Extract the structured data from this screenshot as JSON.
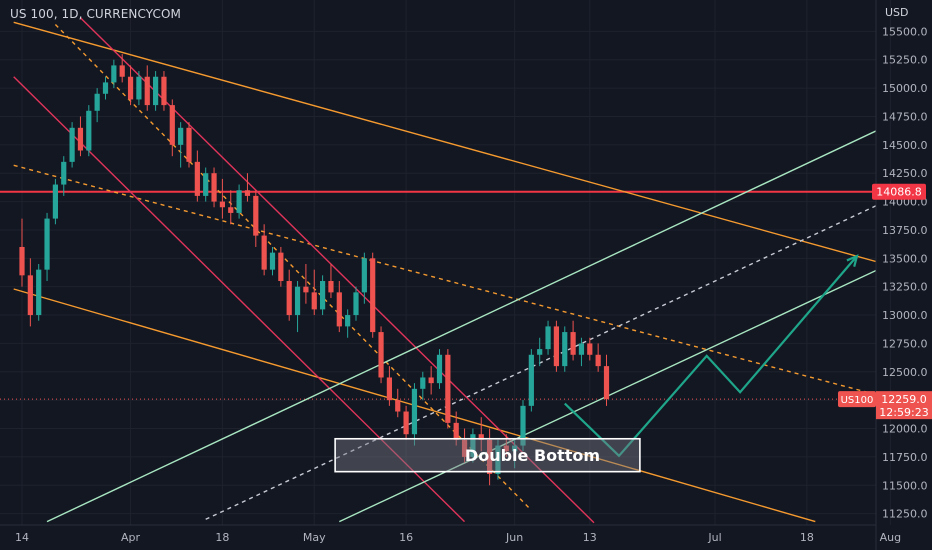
{
  "header": {
    "symbol_title": "US 100, 1D, CURRENCYCOM",
    "currency": "USD"
  },
  "colors": {
    "background": "#131722",
    "up": "#26a69a",
    "down": "#ef5350",
    "orange": "#f59a2f",
    "mint": "#a8e6c1",
    "teal": "#1fa68a",
    "red_level": "#f23645",
    "red_channel": "#e0345a"
  },
  "chart_data": {
    "type": "candlestick",
    "title": "US 100, 1D, CURRENCYCOM",
    "ylabel": "USD",
    "ylim": [
      11150,
      15600
    ],
    "y_ticks": [
      15500,
      15250,
      15000,
      14750,
      14500,
      14250,
      14000,
      13750,
      13500,
      13250,
      13000,
      12750,
      12500,
      12250,
      12000,
      11750,
      11500,
      11250
    ],
    "y_tick_labels": [
      "15500.0",
      "15250.0",
      "15000.0",
      "14750.0",
      "14500.0",
      "14250.0",
      "14000.0",
      "13750.0",
      "13500.0",
      "13250.0",
      "13000.0",
      "12750.0",
      "12500.0",
      "12250.0",
      "12000.0",
      "11750.0",
      "11500.0",
      "11250.0"
    ],
    "x_ticks": [
      {
        "label": "14",
        "bar": 0
      },
      {
        "label": "Apr",
        "bar": 13
      },
      {
        "label": "18",
        "bar": 24
      },
      {
        "label": "May",
        "bar": 35
      },
      {
        "label": "16",
        "bar": 46
      },
      {
        "label": "Jun",
        "bar": 59
      },
      {
        "label": "13",
        "bar": 68
      },
      {
        "label": "Jul",
        "bar": 83
      },
      {
        "label": "18",
        "bar": 94
      },
      {
        "label": "Aug",
        "bar": 104
      }
    ],
    "candles": [
      [
        13600,
        13850,
        13250,
        13350
      ],
      [
        13350,
        13500,
        12900,
        13000
      ],
      [
        13000,
        13450,
        12950,
        13400
      ],
      [
        13400,
        13900,
        13300,
        13850
      ],
      [
        13850,
        14200,
        13800,
        14150
      ],
      [
        14150,
        14400,
        14050,
        14350
      ],
      [
        14350,
        14700,
        14300,
        14650
      ],
      [
        14650,
        14750,
        14400,
        14450
      ],
      [
        14450,
        14850,
        14400,
        14800
      ],
      [
        14800,
        15000,
        14700,
        14950
      ],
      [
        14950,
        15100,
        14900,
        15050
      ],
      [
        15050,
        15250,
        15000,
        15200
      ],
      [
        15200,
        15300,
        15050,
        15100
      ],
      [
        15100,
        15200,
        14850,
        14900
      ],
      [
        14900,
        15150,
        14850,
        15100
      ],
      [
        15100,
        15200,
        14800,
        14850
      ],
      [
        14850,
        15150,
        14800,
        15100
      ],
      [
        15100,
        15150,
        14800,
        14850
      ],
      [
        14850,
        14900,
        14400,
        14500
      ],
      [
        14500,
        14700,
        14300,
        14650
      ],
      [
        14650,
        14700,
        14300,
        14350
      ],
      [
        14350,
        14450,
        14000,
        14050
      ],
      [
        14050,
        14300,
        14000,
        14250
      ],
      [
        14250,
        14300,
        13950,
        14000
      ],
      [
        14000,
        14200,
        13850,
        13950
      ],
      [
        13950,
        14100,
        13800,
        13900
      ],
      [
        13900,
        14150,
        13850,
        14100
      ],
      [
        14100,
        14250,
        14000,
        14050
      ],
      [
        14050,
        14100,
        13600,
        13700
      ],
      [
        13700,
        13800,
        13350,
        13400
      ],
      [
        13400,
        13600,
        13350,
        13550
      ],
      [
        13550,
        13600,
        13250,
        13300
      ],
      [
        13300,
        13400,
        12950,
        13000
      ],
      [
        13000,
        13300,
        12850,
        13250
      ],
      [
        13250,
        13450,
        13100,
        13200
      ],
      [
        13200,
        13400,
        13000,
        13050
      ],
      [
        13050,
        13350,
        13000,
        13300
      ],
      [
        13300,
        13450,
        13150,
        13200
      ],
      [
        13200,
        13300,
        12850,
        12900
      ],
      [
        12900,
        13050,
        12800,
        13000
      ],
      [
        13000,
        13250,
        12950,
        13200
      ],
      [
        13200,
        13550,
        13100,
        13500
      ],
      [
        13500,
        13550,
        12800,
        12850
      ],
      [
        12850,
        12900,
        12400,
        12450
      ],
      [
        12450,
        12550,
        12200,
        12250
      ],
      [
        12250,
        12350,
        12100,
        12150
      ],
      [
        12150,
        12200,
        11900,
        11950
      ],
      [
        11950,
        12400,
        11850,
        12350
      ],
      [
        12350,
        12500,
        12250,
        12450
      ],
      [
        12450,
        12550,
        12300,
        12400
      ],
      [
        12400,
        12700,
        12350,
        12650
      ],
      [
        12650,
        12700,
        12000,
        12050
      ],
      [
        12050,
        12150,
        11850,
        11900
      ],
      [
        11900,
        12000,
        11700,
        11750
      ],
      [
        11750,
        12000,
        11700,
        11950
      ],
      [
        11950,
        12100,
        11800,
        11900
      ],
      [
        11900,
        12000,
        11500,
        11600
      ],
      [
        11600,
        11900,
        11550,
        11850
      ],
      [
        11850,
        11950,
        11750,
        11800
      ],
      [
        11800,
        11900,
        11650,
        11850
      ],
      [
        11850,
        12250,
        11800,
        12200
      ],
      [
        12200,
        12700,
        12150,
        12650
      ],
      [
        12650,
        12800,
        12550,
        12700
      ],
      [
        12700,
        12950,
        12650,
        12900
      ],
      [
        12900,
        12950,
        12500,
        12550
      ],
      [
        12550,
        12900,
        12500,
        12850
      ],
      [
        12850,
        12950,
        12600,
        12650
      ],
      [
        12650,
        12800,
        12550,
        12750
      ],
      [
        12750,
        12800,
        12600,
        12650
      ],
      [
        12650,
        12750,
        12500,
        12550
      ],
      [
        12550,
        12650,
        12200,
        12259
      ]
    ],
    "current_price": {
      "label": "US100",
      "value": "12259.0",
      "countdown": "12:59:23",
      "price": 12259
    },
    "level_line": {
      "price": 14086.8,
      "label": "14086.8"
    },
    "annotation": {
      "text": "Double Bottom"
    },
    "lines": [
      {
        "style": "solid",
        "color": "orange",
        "points": [
          [
            -1,
            15580
          ],
          [
            104.8,
            13420
          ]
        ]
      },
      {
        "style": "solid",
        "color": "orange",
        "points": [
          [
            -1,
            13230
          ],
          [
            95,
            11180
          ]
        ]
      },
      {
        "style": "dashed",
        "color": "orange",
        "points": [
          [
            -1,
            14320
          ],
          [
            104.8,
            12250
          ]
        ]
      },
      {
        "style": "dashed",
        "color": "orange",
        "points": [
          [
            4,
            15560
          ],
          [
            61,
            11280
          ]
        ]
      },
      {
        "style": "dashed",
        "color": "white",
        "points": [
          [
            22,
            11200
          ],
          [
            104.8,
            14050
          ]
        ]
      },
      {
        "style": "solid",
        "color": "red_channel",
        "points": [
          [
            7,
            15620
          ],
          [
            68.5,
            11170
          ]
        ]
      },
      {
        "style": "solid",
        "color": "red_channel",
        "points": [
          [
            -1,
            15100
          ],
          [
            53,
            11180
          ]
        ]
      },
      {
        "style": "solid",
        "color": "mint",
        "points": [
          [
            3,
            11180
          ],
          [
            104.8,
            14710
          ]
        ]
      },
      {
        "style": "solid",
        "color": "mint",
        "points": [
          [
            38,
            11180
          ],
          [
            104.8,
            13480
          ]
        ]
      },
      {
        "style": "solid",
        "color": "teal",
        "points": [
          [
            65,
            12220
          ],
          [
            71.5,
            11760
          ],
          [
            82,
            12640
          ],
          [
            86,
            12320
          ],
          [
            100,
            13520
          ]
        ],
        "arrow": true
      }
    ],
    "annotation_box": {
      "bars": [
        37.5,
        74
      ],
      "prices": [
        11910,
        11620
      ]
    }
  }
}
